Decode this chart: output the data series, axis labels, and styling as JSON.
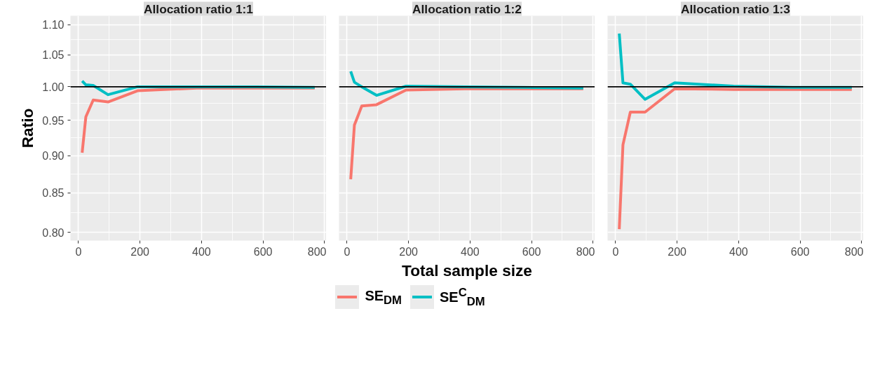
{
  "chart_data": [
    {
      "type": "line",
      "title": "Allocation ratio 1:1",
      "ylabel": "Ratio",
      "x": [
        12,
        24,
        48,
        96,
        192,
        384,
        576,
        768
      ],
      "series": [
        {
          "name": "SE$_{DM}$",
          "color": "#f8766d",
          "values": [
            0.904,
            0.955,
            0.98,
            0.977,
            0.994,
            0.998,
            0.998,
            0.998
          ]
        },
        {
          "name": "SE$^{C}$$_{DM}$",
          "color": "#00bfc4",
          "values": [
            1.009,
            1.003,
            1.002,
            0.988,
            1.0,
            1.0,
            1.0,
            0.999
          ]
        }
      ],
      "xlim": [
        -26,
        806
      ],
      "xticks": [
        0,
        200,
        400,
        600,
        800
      ],
      "ylim": [
        0.79,
        1.115
      ],
      "log": "y",
      "yticks": [
        {
          "value": 0.8,
          "label": "0.80"
        },
        0.85,
        {
          "value": 0.9,
          "label": "0.90"
        },
        0.95,
        {
          "value": 1.0,
          "label": "1.00"
        },
        1.05,
        {
          "value": 1.1,
          "label": "1.10"
        }
      ],
      "ref_lines": [
        {
          "axis": "y",
          "value": 1.0,
          "color": "#000000"
        }
      ],
      "grid": true,
      "legend": "bottom",
      "line_style": "solid",
      "marker": "none"
    },
    {
      "type": "line",
      "title": "Allocation ratio 1:2",
      "xlabel": "Total sample size",
      "x": [
        12,
        24,
        48,
        96,
        192,
        384,
        576,
        768
      ],
      "series": [
        {
          "name": "SE$_{DM}$",
          "color": "#f8766d",
          "values": [
            0.868,
            0.943,
            0.971,
            0.973,
            0.995,
            0.997,
            0.997,
            0.997
          ]
        },
        {
          "name": "SE$^{C}$$_{DM}$",
          "color": "#00bfc4",
          "values": [
            1.024,
            1.007,
            1.0,
            0.987,
            1.001,
            1.0,
            0.999,
            0.998
          ]
        }
      ],
      "xlim": [
        -26,
        806
      ],
      "xticks": [
        0,
        200,
        400,
        600,
        800
      ],
      "ylim": [
        0.79,
        1.115
      ],
      "log": "y",
      "yticks": [
        {
          "value": 0.8,
          "label": "0.80"
        },
        0.85,
        {
          "value": 0.9,
          "label": "0.90"
        },
        0.95,
        {
          "value": 1.0,
          "label": "1.00"
        },
        1.05,
        {
          "value": 1.1,
          "label": "1.10"
        }
      ],
      "ref_lines": [
        {
          "axis": "y",
          "value": 1.0,
          "color": "#000000"
        }
      ],
      "grid": true,
      "legend": "bottom",
      "line_style": "solid",
      "marker": "none",
      "tick_labels": "x"
    },
    {
      "type": "line",
      "title": "Allocation ratio 1:3",
      "x": [
        12,
        24,
        48,
        96,
        192,
        384,
        576,
        768
      ],
      "series": [
        {
          "name": "SE$_{DM}$",
          "color": "#f8766d",
          "values": [
            0.804,
            0.915,
            0.962,
            0.962,
            0.997,
            0.996,
            0.996,
            0.996
          ]
        },
        {
          "name": "SE$^{C}$$_{DM}$",
          "color": "#00bfc4",
          "values": [
            1.085,
            1.006,
            1.004,
            0.981,
            1.006,
            1.001,
            0.999,
            0.999
          ]
        }
      ],
      "xlim": [
        -26,
        806
      ],
      "xticks": [
        0,
        200,
        400,
        600,
        800
      ],
      "ylim": [
        0.79,
        1.115
      ],
      "log": "y",
      "yticks": [
        {
          "value": 0.8,
          "label": "0.80"
        },
        0.85,
        {
          "value": 0.9,
          "label": "0.90"
        },
        0.95,
        {
          "value": 1.0,
          "label": "1.00"
        },
        1.05,
        {
          "value": 1.1,
          "label": "1.10"
        }
      ],
      "ref_lines": [
        {
          "axis": "y",
          "value": 1.0,
          "color": "#000000"
        }
      ],
      "grid": true,
      "legend": "bottom",
      "line_style": "solid",
      "marker": "none",
      "tick_labels": "x"
    }
  ]
}
